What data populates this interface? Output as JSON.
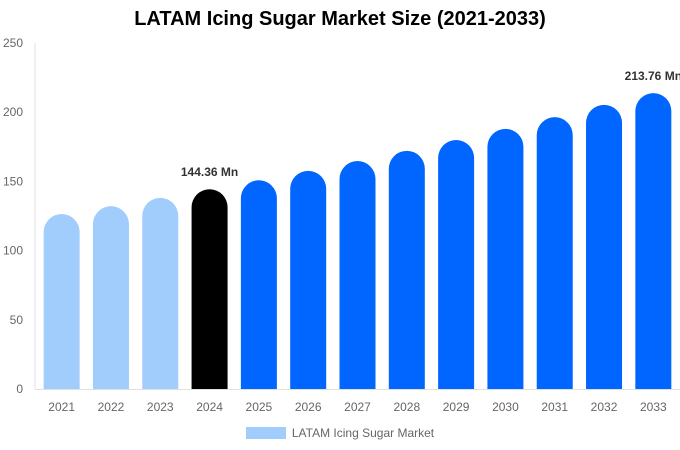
{
  "chart_data": {
    "type": "bar",
    "title": "LATAM Icing Sugar Market Size (2021-2033)",
    "categories": [
      "2021",
      "2022",
      "2023",
      "2024",
      "2025",
      "2026",
      "2027",
      "2028",
      "2029",
      "2030",
      "2031",
      "2032",
      "2033"
    ],
    "series": [
      {
        "name": "LATAM Icing Sugar Market",
        "values": [
          126.4,
          132.1,
          138.1,
          144.36,
          150.8,
          157.6,
          164.7,
          172.1,
          179.9,
          188.0,
          196.4,
          205.3,
          213.76
        ]
      }
    ],
    "data_labels": {
      "3": "144.36 Mn",
      "12": "213.76 Mn"
    },
    "ylim": [
      0,
      250
    ],
    "yticks": [
      0,
      50,
      100,
      150,
      200,
      250
    ],
    "grid": false,
    "legend_position": "bottom",
    "colors": {
      "historic": "#a0cdfc",
      "current": "#000000",
      "forecast": "#0066ff"
    },
    "bar_color_groups": [
      "historic",
      "historic",
      "historic",
      "current",
      "forecast",
      "forecast",
      "forecast",
      "forecast",
      "forecast",
      "forecast",
      "forecast",
      "forecast",
      "forecast"
    ]
  }
}
